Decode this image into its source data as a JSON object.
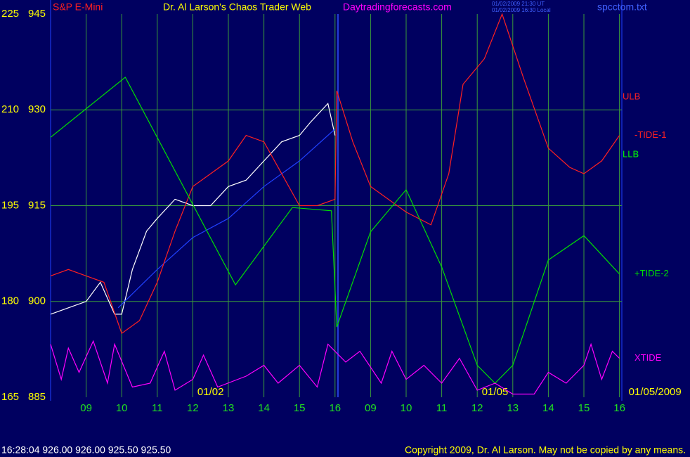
{
  "chart_data": {
    "type": "line",
    "instrument": "S&P E-Mini",
    "title": "Dr. Al Larson's Chaos Trader Web",
    "website": "Daytradingforecasts.com",
    "timestamps": [
      "01/02/2009 21:30 UT",
      "01/02/2009 16:30 Local"
    ],
    "filename": "spcctom.txt",
    "status": "16:28:04  926.00 926.00 925.50 925.50",
    "copyright": "Copyright 2009, Dr. Al Larson. May not be copied by any means.",
    "xlim": [
      0,
      16.1
    ],
    "xticks": [
      {
        "value": 1,
        "label": "09"
      },
      {
        "value": 2,
        "label": "10"
      },
      {
        "value": 3,
        "label": "11"
      },
      {
        "value": 4,
        "label": "12"
      },
      {
        "value": 5,
        "label": "13"
      },
      {
        "value": 6,
        "label": "14"
      },
      {
        "value": 7,
        "label": "15"
      },
      {
        "value": 8,
        "label": "16"
      },
      {
        "value": 9,
        "label": "09"
      },
      {
        "value": 10,
        "label": "10"
      },
      {
        "value": 11,
        "label": "11"
      },
      {
        "value": 12,
        "label": "12"
      },
      {
        "value": 13,
        "label": "13"
      },
      {
        "value": 14,
        "label": "14"
      },
      {
        "value": 15,
        "label": "15"
      },
      {
        "value": 16,
        "label": "16"
      }
    ],
    "ylim": [
      885,
      945
    ],
    "yticks": [
      885,
      900,
      915,
      930,
      945
    ],
    "y2lim": [
      165,
      225
    ],
    "y2ticks": [
      165,
      180,
      195,
      210,
      225
    ],
    "grid": true,
    "date_labels": [
      {
        "text": "01/02",
        "x": 4.5
      },
      {
        "text": "01/05",
        "x": 12.5
      },
      {
        "text": "01/05/2009",
        "x": 17.0
      }
    ],
    "edge_labels": [
      {
        "text": "ULB",
        "color": "#ff2020",
        "y2": 212
      },
      {
        "text": "LLB",
        "color": "#00ff00",
        "y2": 203
      }
    ],
    "series": [
      {
        "color": "#ffffff",
        "x": [
          0,
          0.5,
          1,
          1.4,
          1.8,
          2,
          2.3,
          2.7,
          3,
          3.5,
          4,
          4.5,
          5,
          5.5,
          6,
          6.5,
          7,
          7.3,
          7.8,
          8
        ],
        "values": [
          898,
          899,
          900,
          903,
          898,
          898,
          905,
          911,
          913,
          916,
          915,
          915,
          918,
          919,
          922,
          925,
          926,
          928,
          931,
          926
        ]
      },
      {
        "color": "#2040ff",
        "x": [
          1.9,
          3,
          4,
          5,
          6,
          7,
          8
        ],
        "values": [
          899,
          905,
          910,
          913,
          918,
          922,
          927
        ]
      },
      {
        "name": "-TIDE-1",
        "color": "#ff2020",
        "axis": "y2",
        "x": [
          0,
          0.5,
          1,
          1.5,
          2,
          2.5,
          3,
          3.5,
          4,
          4.5,
          5,
          5.5,
          6,
          6.5,
          7,
          7.5,
          8,
          8.05,
          8.5,
          9,
          10,
          10.7,
          11.2,
          11.6,
          12.2,
          12.7,
          13.3,
          14,
          14.6,
          15,
          15.5,
          16
        ],
        "values": [
          184,
          185,
          184,
          183,
          175,
          177,
          183,
          191,
          198,
          200,
          202,
          206,
          205,
          200,
          195,
          195,
          196,
          213,
          205,
          198,
          194,
          192,
          200,
          214,
          218,
          225,
          215,
          204,
          201,
          200,
          202,
          206
        ]
      },
      {
        "name": "+TIDE-2",
        "color": "#00e000",
        "axis": "y2",
        "x": [
          0,
          2.1,
          5.2,
          6.8,
          7.9,
          8.05,
          9,
          10,
          11,
          12,
          12.5,
          13,
          14,
          15,
          16
        ],
        "values": [
          205.7,
          215.1,
          182.6,
          194.7,
          194.2,
          176.0,
          190.9,
          197.5,
          185.4,
          170.0,
          167.2,
          170.0,
          186.5,
          190.3,
          184.3
        ]
      },
      {
        "name": "XTIDE",
        "color": "#ff00ff",
        "axis": "y2",
        "x": [
          0,
          0.3,
          0.5,
          0.8,
          1.2,
          1.6,
          1.8,
          2.3,
          2.8,
          3.2,
          3.5,
          4,
          4.3,
          4.7,
          5.5,
          6,
          6.4,
          7,
          7.5,
          7.8,
          8.3,
          8.7,
          9.3,
          9.6,
          10,
          10.5,
          11,
          11.5,
          12,
          12.5,
          13,
          13.6,
          14,
          14.5,
          15,
          15.2,
          15.5,
          15.8,
          16
        ],
        "values": [
          173.3,
          167.8,
          172.7,
          168.9,
          173.8,
          167.2,
          173.3,
          166.6,
          167.2,
          172.2,
          166.1,
          167.8,
          171.6,
          166.6,
          168.3,
          170.0,
          167.2,
          170.0,
          166.6,
          173.3,
          170.5,
          172.2,
          167.2,
          172.2,
          167.8,
          170.0,
          167.2,
          171.1,
          166.1,
          167.2,
          165.5,
          165.5,
          168.9,
          167.2,
          170.0,
          173.3,
          167.8,
          172.2,
          171.1
        ]
      }
    ]
  }
}
